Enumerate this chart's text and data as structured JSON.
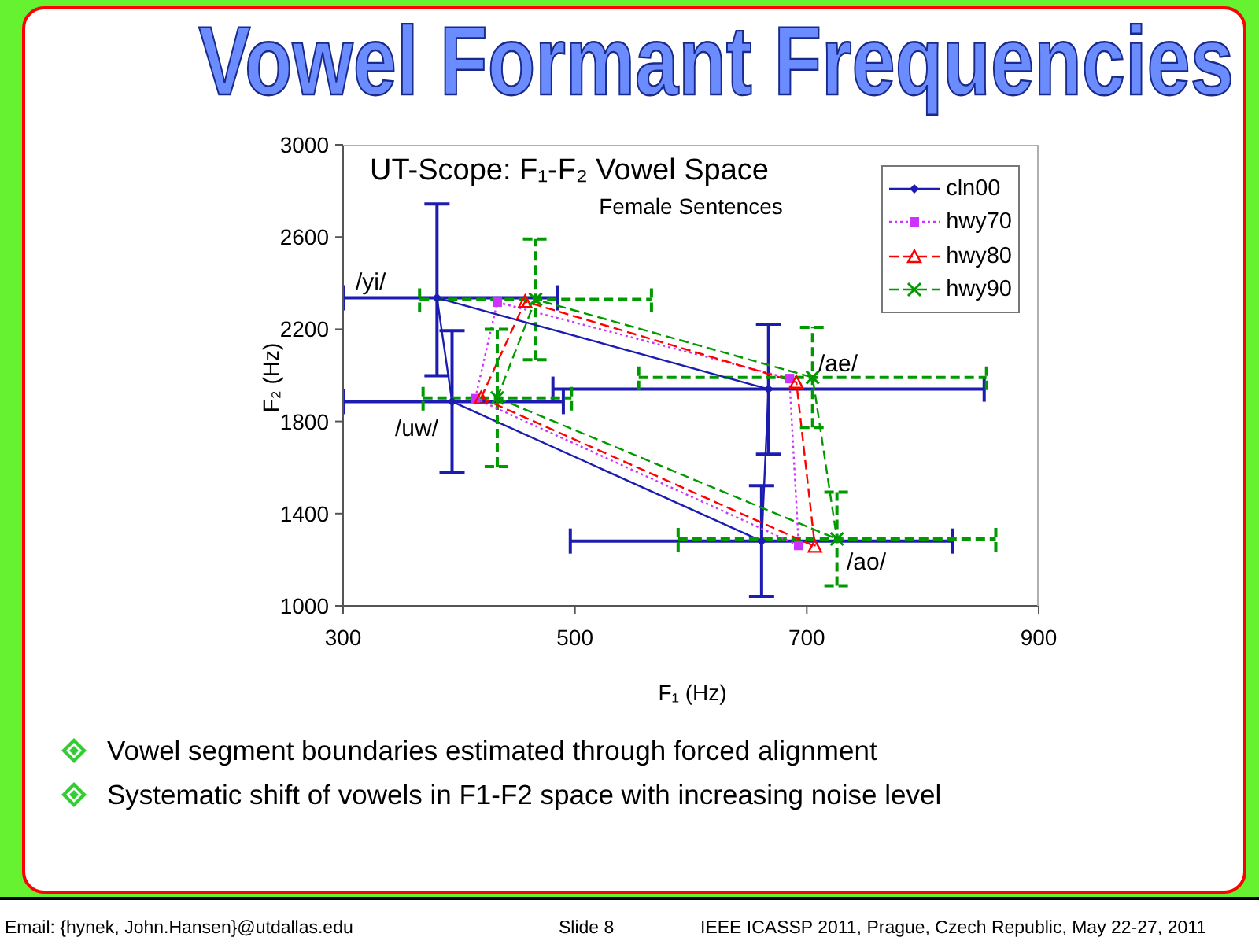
{
  "chart_data": {
    "type": "line",
    "title": "Vowel Formant Frequencies",
    "subtitle": "UT-Scope: F₁-F₂ Vowel Space",
    "xlabel": "F₁ (Hz)",
    "ylabel": "F₂ (Hz)",
    "xlim": [
      300,
      900
    ],
    "xticks": [
      300,
      500,
      700,
      900
    ],
    "ylim": [
      1000,
      3000
    ],
    "yticks": [
      1000,
      1400,
      1800,
      2200,
      2600,
      3000
    ],
    "legend": "top right",
    "series": [
      {
        "name": "cln00",
        "color": "#1c1cb0",
        "marker": "diamond",
        "line_style": "solid",
        "x": [
          381,
          394,
          661,
          667
        ],
        "values": [
          2336,
          1886,
          1281,
          1940
        ],
        "errors": [
          [
            1998,
            2743
          ],
          308,
          240,
          282
        ],
        "xerrors": [
          [
            300,
            485
          ],
          [
            300,
            490
          ],
          165,
          186
        ]
      },
      {
        "name": "hwy70",
        "color": "#cc33ff",
        "marker": "square",
        "line_style": "dotted",
        "x": [
          414,
          433,
          685,
          693
        ],
        "values": [
          1899,
          2317,
          1986,
          1262
        ]
      },
      {
        "name": "hwy80",
        "color": "#ff0000",
        "marker": "triangle",
        "line_style": "dashed",
        "x": [
          419,
          457,
          691,
          707
        ],
        "values": [
          1902,
          2320,
          1970,
          1258
        ]
      },
      {
        "name": "hwy90",
        "color": "#009900",
        "marker": "cross",
        "line_style": "dashed",
        "x": [
          433,
          466,
          705,
          726
        ],
        "values": [
          1902,
          2329,
          1991,
          1290
        ],
        "errors": [
          298,
          262,
          217,
          203
        ],
        "xerrors": [
          64,
          100,
          150,
          137
        ]
      },
      {
        "color": "#1c1cb0",
        "marker": "none",
        "line_style": "solid",
        "x": [
          381,
          667
        ],
        "values": [
          2336,
          1940
        ]
      },
      {
        "color": "#cc33ff",
        "marker": "none",
        "line_style": "dotted",
        "x": [
          414,
          693
        ],
        "values": [
          1899,
          1262
        ]
      },
      {
        "color": "#ff0000",
        "marker": "none",
        "line_style": "dashed",
        "x": [
          419,
          707
        ],
        "values": [
          1902,
          1258
        ]
      },
      {
        "color": "#009900",
        "marker": "none",
        "line_style": "dashed",
        "x": [
          433,
          726
        ],
        "values": [
          1902,
          1290
        ]
      }
    ],
    "annotations": [
      "Female Sentences",
      "/yi/",
      "/uw/",
      "/ae/",
      "/ao/",
      "Vowel segment boundaries estimated through forced alignment",
      "Systematic shift of vowels in F1-F2 space with increasing noise level",
      "Email: {hynek, John.Hansen}@utdallas.edu",
      "Slide 8",
      "IEEE ICASSP 2011, Prague, Czech Republic, May 22-27, 2011"
    ]
  }
}
